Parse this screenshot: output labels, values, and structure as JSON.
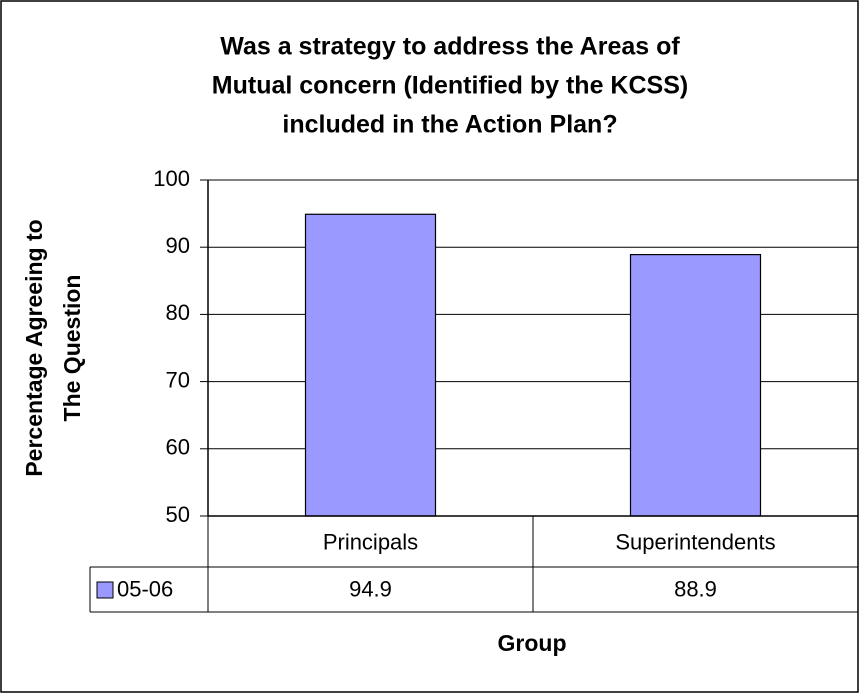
{
  "chart_data": {
    "type": "bar",
    "title": [
      "Was a strategy to address the Areas of",
      "Mutual concern (Identified by the KCSS)",
      "included in the Action Plan?"
    ],
    "y_label": [
      "Percentage Agreeing to",
      "The Question"
    ],
    "x_label": "Group",
    "categories": [
      "Principals",
      "Superintendents"
    ],
    "series": [
      {
        "name": "05-06",
        "color": "#9999ff",
        "values": [
          94.9,
          88.9
        ]
      }
    ],
    "ylim": [
      50,
      100
    ],
    "yticks": [
      50,
      60,
      70,
      80,
      90,
      100
    ],
    "grid": true,
    "data_table": true
  }
}
